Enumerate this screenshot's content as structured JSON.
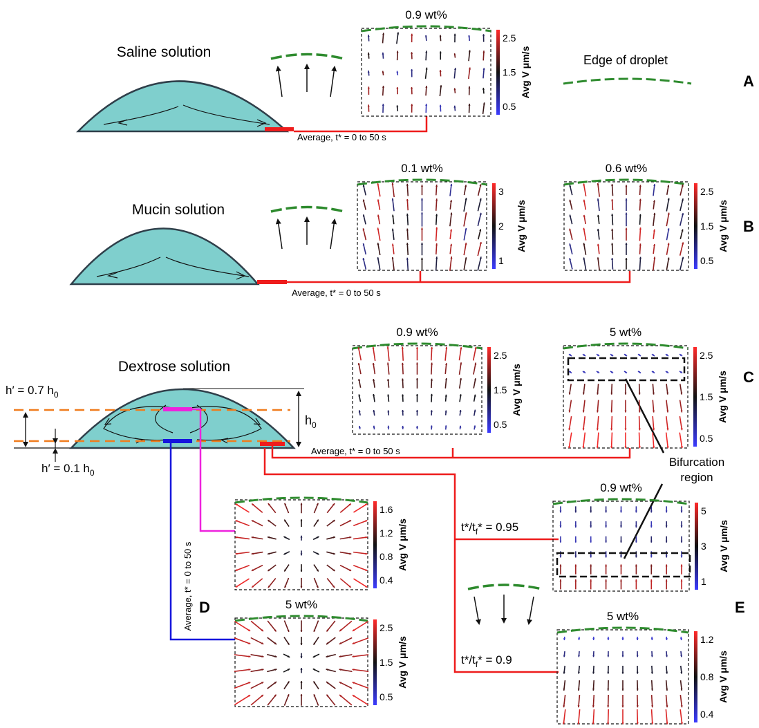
{
  "colors": {
    "droplet_fill": "#7fcfcd",
    "droplet_stroke": "#2f3f4a",
    "edge_green": "#2e8b2e",
    "red_line": "#ee1c1c",
    "magenta_line": "#ee22dd",
    "blue_line": "#1515dd",
    "orange_dash": "#f07c1d"
  },
  "panel_letters": {
    "a": "A",
    "b": "B",
    "c": "C",
    "d": "D",
    "e": "E"
  },
  "labels": {
    "saline": "Saline solution",
    "mucin": "Mucin solution",
    "dextrose": "Dextrose solution",
    "edge_of_droplet": "Edge of droplet",
    "average_a": "Average, t* = 0 to 50 s",
    "average_b": "Average, t* = 0 to 50 s",
    "average_c": "Average, t* = 0 to 50 s",
    "average_d_vertical": "Average, t* = 0 to 50 s",
    "bifurcation_line1": "Bifurcation",
    "bifurcation_line2": "region",
    "h07_main": "h′ = 0.7 h",
    "h07_sub": "0",
    "h01_main": "h′ = 0.1 h",
    "h01_sub": "0",
    "h0_main": "h",
    "h0_sub": "0",
    "t095_a": "t*/t",
    "t095_sub1": "f",
    "t095_b": "* = 0.95",
    "t09_a": "t*/t",
    "t09_sub1": "f",
    "t09_b": "* = 0.9"
  },
  "plots": [
    {
      "id": "a1",
      "title": "0.9 wt%",
      "ticks": [
        "2.5",
        "1.5",
        "0.5"
      ],
      "cblabel": "Avg V μm/s",
      "pattern": "up_sparse"
    },
    {
      "id": "b1",
      "title": "0.1 wt%",
      "ticks": [
        "3",
        "2",
        "1"
      ],
      "cblabel": "Avg V μm/s",
      "pattern": "up_dense"
    },
    {
      "id": "b2",
      "title": "0.6 wt%",
      "ticks": [
        "2.5",
        "1.5",
        "0.5"
      ],
      "cblabel": "Avg V μm/s",
      "pattern": "up_dense"
    },
    {
      "id": "c1",
      "title": "0.9 wt%",
      "ticks": [
        "2.5",
        "1.5",
        "0.5"
      ],
      "cblabel": "Avg V μm/s",
      "pattern": "up_fade"
    },
    {
      "id": "c2",
      "title": "5 wt%",
      "ticks": [
        "2.5",
        "1.5",
        "0.5"
      ],
      "cblabel": "Avg V μm/s",
      "pattern": "down_bif"
    },
    {
      "id": "d1",
      "title": "",
      "ticks": [
        "1.6",
        "1.2",
        "0.8",
        "0.4"
      ],
      "cblabel": "Avg V μm/s",
      "pattern": "diverge"
    },
    {
      "id": "d2",
      "title": "5 wt%",
      "ticks": [
        "2.5",
        "1.5",
        "0.5"
      ],
      "cblabel": "Avg V μm/s",
      "pattern": "converge"
    },
    {
      "id": "e1",
      "title": "0.9 wt%",
      "ticks": [
        "5",
        "3",
        "1"
      ],
      "cblabel": "Avg V μm/s",
      "pattern": "down_small"
    },
    {
      "id": "e2",
      "title": "5 wt%",
      "ticks": [
        "1.2",
        "0.8",
        "0.4"
      ],
      "cblabel": "Avg V μm/s",
      "pattern": "down_grow"
    }
  ]
}
